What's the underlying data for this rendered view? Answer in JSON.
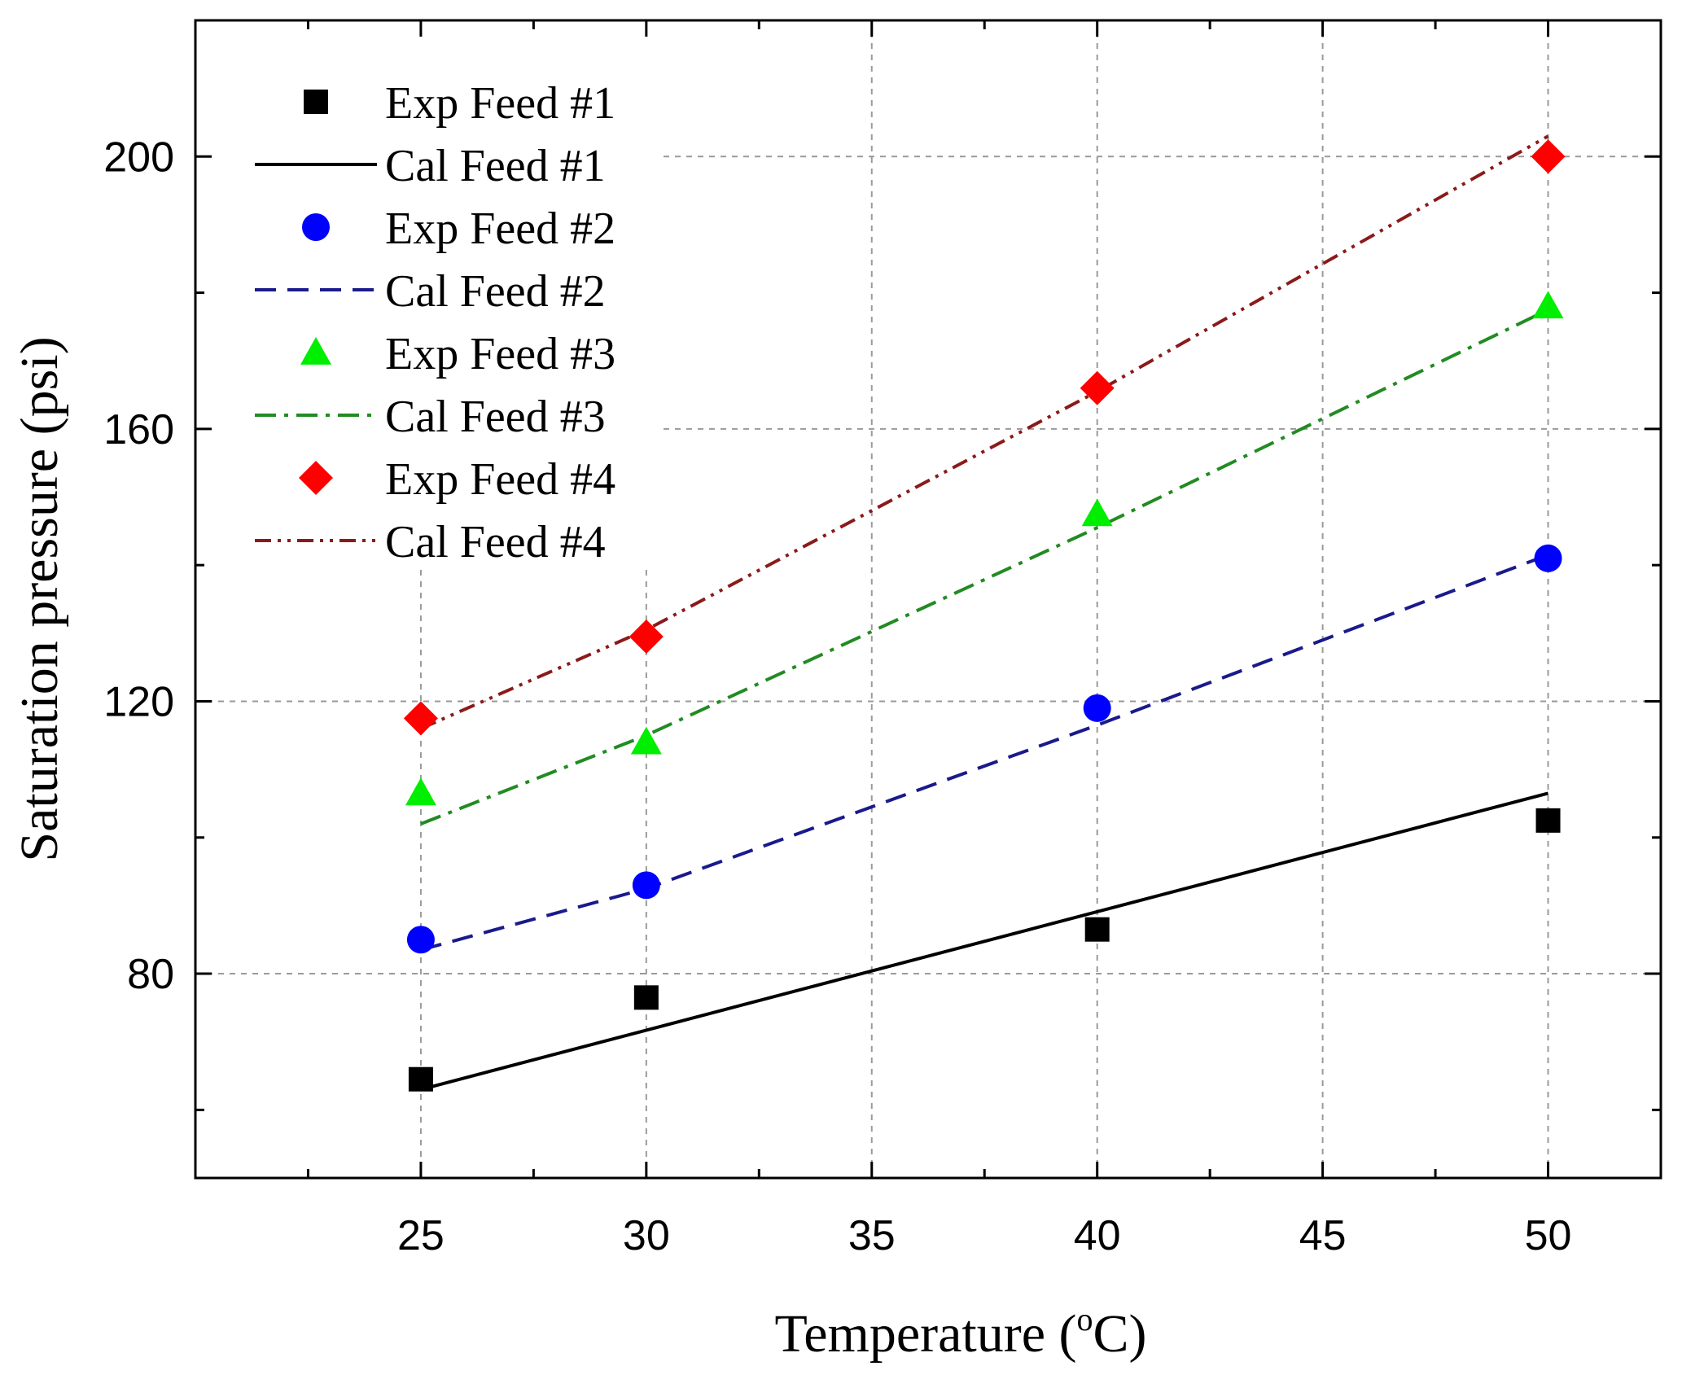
{
  "chart_data": {
    "type": "scatter",
    "title": "",
    "xlabel": "Temperature (",
    "xlabel_sup": "o",
    "xlabel_suffix": "C)",
    "ylabel": "Saturation pressure (psi)",
    "xlim": [
      20,
      52.5
    ],
    "ylim": [
      50,
      220
    ],
    "xticks": [
      25,
      30,
      35,
      40,
      45,
      50
    ],
    "xtick_labels": [
      "25",
      "30",
      "35",
      "40",
      "45",
      "50"
    ],
    "yticks": [
      80,
      120,
      160,
      200
    ],
    "ytick_labels": [
      "80",
      "120",
      "160",
      "200"
    ],
    "grid": true,
    "legend_position": "top-left",
    "series": [
      {
        "name": "Exp Feed #1",
        "kind": "marker",
        "marker": "square",
        "color": "#000000",
        "x": [
          25,
          30,
          40,
          50
        ],
        "y": [
          64.5,
          76.5,
          86.5,
          102.5
        ]
      },
      {
        "name": "Cal Feed #1",
        "kind": "line",
        "dash": "solid",
        "color": "#000000",
        "x": [
          25,
          50
        ],
        "y": [
          63,
          106.5
        ]
      },
      {
        "name": "Exp Feed #2",
        "kind": "marker",
        "marker": "circle",
        "color": "#0000ff",
        "x": [
          25,
          30,
          40,
          50
        ],
        "y": [
          85,
          93,
          119,
          141
        ]
      },
      {
        "name": "Cal Feed #2",
        "kind": "line",
        "dash": "dash",
        "color": "#1a1a8c",
        "x": [
          25,
          30,
          40,
          50
        ],
        "y": [
          83.5,
          92.5,
          116.5,
          141.5
        ]
      },
      {
        "name": "Exp Feed #3",
        "kind": "marker",
        "marker": "triangle",
        "color": "#00ee00",
        "x": [
          25,
          30,
          40,
          50
        ],
        "y": [
          106.5,
          114,
          147.5,
          178
        ]
      },
      {
        "name": "Cal Feed #3",
        "kind": "line",
        "dash": "dashdot",
        "color": "#228b22",
        "x": [
          25,
          30,
          40,
          50
        ],
        "y": [
          102,
          115,
          145.5,
          177.5
        ]
      },
      {
        "name": "Exp Feed #4",
        "kind": "marker",
        "marker": "diamond",
        "color": "#ff0000",
        "x": [
          25,
          30,
          40,
          50
        ],
        "y": [
          117.5,
          129.5,
          166,
          200
        ]
      },
      {
        "name": "Cal Feed #4",
        "kind": "line",
        "dash": "dashdotdot",
        "color": "#8b1a1a",
        "x": [
          25,
          30,
          40,
          50
        ],
        "y": [
          116,
          130.5,
          165.5,
          203
        ]
      }
    ]
  }
}
